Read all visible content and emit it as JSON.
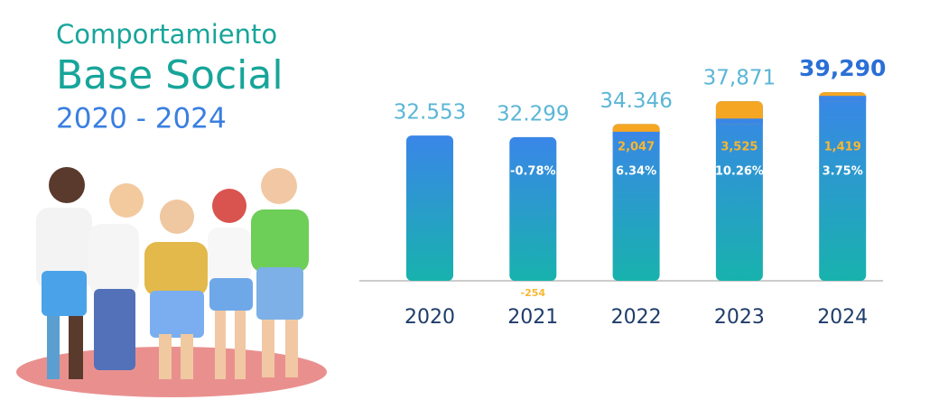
{
  "chart_data": {
    "type": "bar",
    "title": "Comportamiento",
    "subtitle": "Base Social",
    "period": "2020 - 2024",
    "categories": [
      "2020",
      "2021",
      "2022",
      "2023",
      "2024"
    ],
    "values": [
      32553,
      32299,
      34346,
      37871,
      39290
    ],
    "value_labels": [
      "32.553",
      "32.299",
      "34.346",
      "37,871",
      "39,290"
    ],
    "increments": [
      null,
      -254,
      2047,
      3525,
      1419
    ],
    "increment_labels": [
      null,
      "-254",
      "2,047",
      "3,525",
      "1,419"
    ],
    "percent_changes": [
      null,
      -0.78,
      6.34,
      10.26,
      3.75
    ],
    "percent_labels": [
      null,
      "-0.78%",
      "6.34%",
      "10.26%",
      "3.75%"
    ],
    "color": "#3a86e8",
    "increment_color": "#f5a623",
    "ylim": [
      10000,
      40000
    ]
  }
}
